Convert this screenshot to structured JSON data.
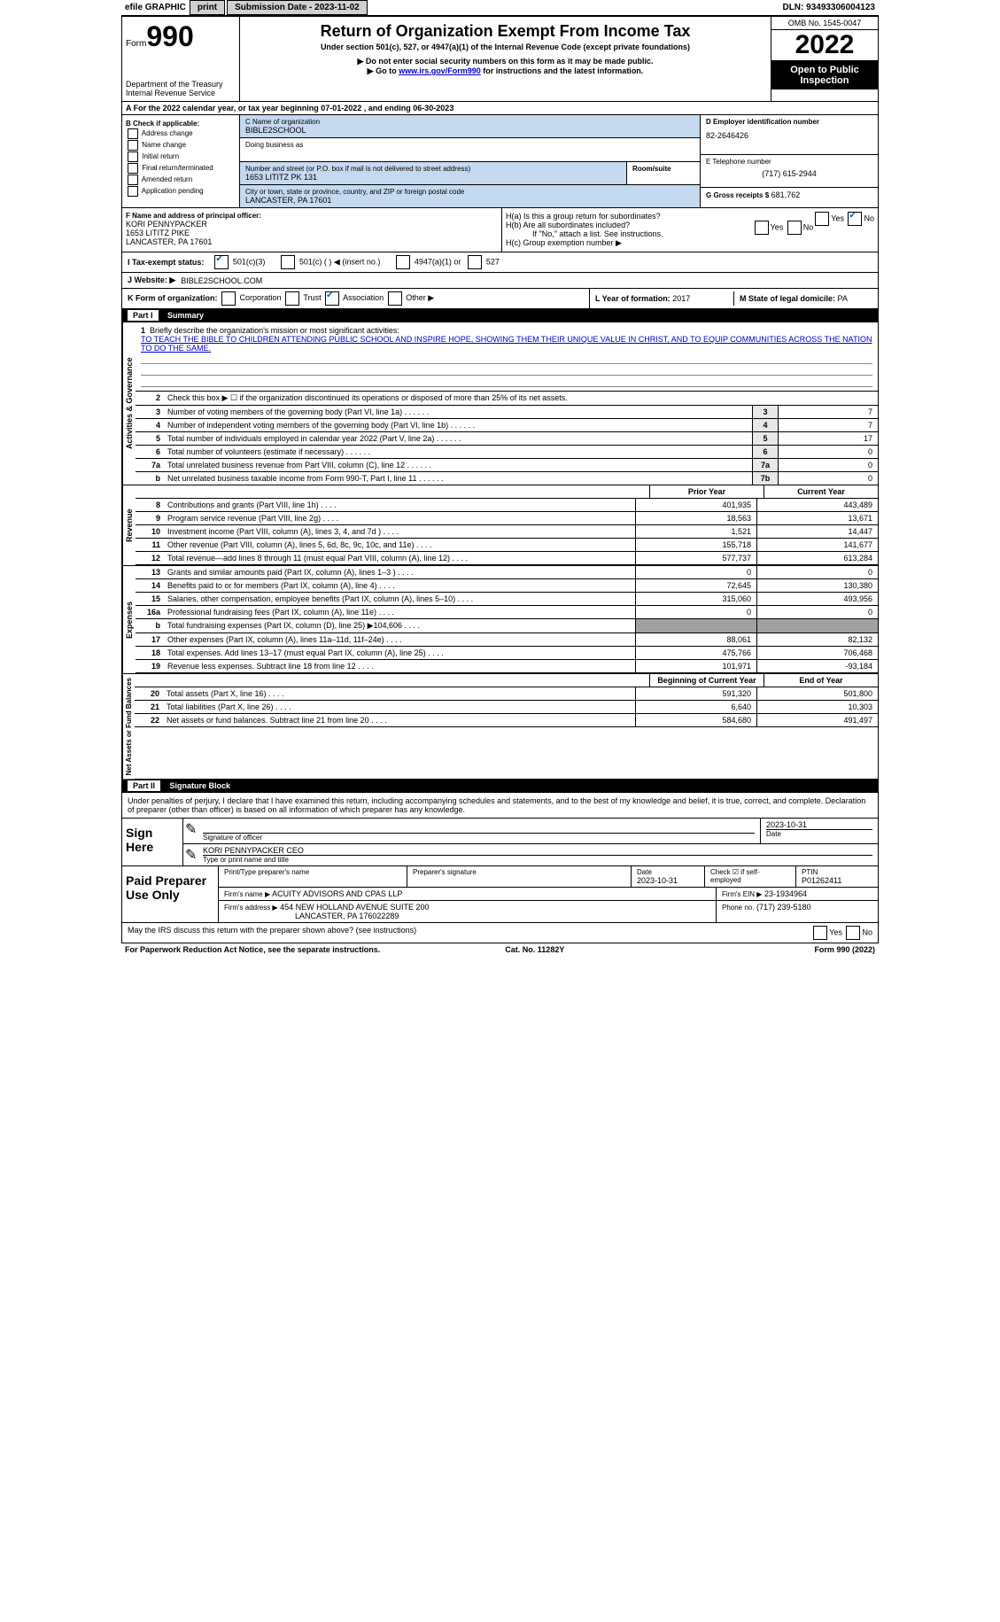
{
  "topbar": {
    "efile": "efile GRAPHIC",
    "print": "print",
    "submission": "Submission Date - 2023-11-02",
    "dln": "DLN: 93493306004123"
  },
  "header": {
    "form_word": "Form",
    "form_num": "990",
    "dept": "Department of the Treasury",
    "irs": "Internal Revenue Service",
    "title": "Return of Organization Exempt From Income Tax",
    "subtitle": "Under section 501(c), 527, or 4947(a)(1) of the Internal Revenue Code (except private foundations)",
    "note1": "▶ Do not enter social security numbers on this form as it may be made public.",
    "note2_pre": "▶ Go to ",
    "note2_link": "www.irs.gov/Form990",
    "note2_post": " for instructions and the latest information.",
    "omb": "OMB No. 1545-0047",
    "year": "2022",
    "open": "Open to Public Inspection"
  },
  "row_a": "A For the 2022 calendar year, or tax year beginning 07-01-2022    , and ending 06-30-2023",
  "col_b": {
    "header": "B Check if applicable:",
    "items": [
      "Address change",
      "Name change",
      "Initial return",
      "Final return/terminated",
      "Amended return",
      "Application pending"
    ]
  },
  "col_c": {
    "name_label": "C Name of organization",
    "name": "BIBLE2SCHOOL",
    "dba": "Doing business as",
    "street_label": "Number and street (or P.O. box if mail is not delivered to street address)",
    "street": "1653 LITITZ PK 131",
    "room": "Room/suite",
    "city_label": "City or town, state or province, country, and ZIP or foreign postal code",
    "city": "LANCASTER, PA  17601"
  },
  "col_d": {
    "ein_label": "D Employer identification number",
    "ein": "82-2646426",
    "phone_label": "E Telephone number",
    "phone": "(717) 615-2944",
    "gross_label": "G Gross receipts $",
    "gross": "681,762"
  },
  "officer": {
    "label": "F Name and address of principal officer:",
    "name": "KORI PENNYPACKER",
    "street": "1653 LITITZ PIKE",
    "city": "LANCASTER, PA  17601"
  },
  "h_section": {
    "ha": "H(a)  Is this a group return for subordinates?",
    "hb": "H(b)  Are all subordinates included?",
    "hb_note": "If \"No,\" attach a list. See instructions.",
    "hc": "H(c)  Group exemption number ▶",
    "yes": "Yes",
    "no": "No"
  },
  "tax_status": {
    "label": "I  Tax-exempt status:",
    "opt1": "501(c)(3)",
    "opt2": "501(c) (   ) ◀ (insert no.)",
    "opt3": "4947(a)(1) or",
    "opt4": "527"
  },
  "website": {
    "label": "J  Website: ▶",
    "value": "BIBLE2SCHOOL.COM"
  },
  "form_org": {
    "label": "K Form of organization:",
    "opts": [
      "Corporation",
      "Trust",
      "Association",
      "Other ▶"
    ],
    "checked": 2
  },
  "year_formed": {
    "label": "L Year of formation:",
    "value": "2017"
  },
  "domicile": {
    "label": "M State of legal domicile:",
    "value": "PA"
  },
  "part1": {
    "title": "Part I",
    "subtitle": "Summary",
    "vert1": "Activities & Governance",
    "vert2": "Revenue",
    "vert3": "Expenses",
    "vert4": "Net Assets or Fund Balances",
    "line1_label": "Briefly describe the organization's mission or most significant activities:",
    "mission": "TO TEACH THE BIBLE TO CHILDREN ATTENDING PUBLIC SCHOOL AND INSPIRE HOPE, SHOWING THEM THEIR UNIQUE VALUE IN CHRIST, AND TO EQUIP COMMUNITIES ACROSS THE NATION TO DO THE SAME.",
    "line2": "Check this box ▶ ☐ if the organization discontinued its operations or disposed of more than 25% of its net assets.",
    "lines_ag": [
      {
        "n": "3",
        "t": "Number of voting members of the governing body (Part VI, line 1a)",
        "k": "3",
        "v": "7"
      },
      {
        "n": "4",
        "t": "Number of independent voting members of the governing body (Part VI, line 1b)",
        "k": "4",
        "v": "7"
      },
      {
        "n": "5",
        "t": "Total number of individuals employed in calendar year 2022 (Part V, line 2a)",
        "k": "5",
        "v": "17"
      },
      {
        "n": "6",
        "t": "Total number of volunteers (estimate if necessary)",
        "k": "6",
        "v": "0"
      },
      {
        "n": "7a",
        "t": "Total unrelated business revenue from Part VIII, column (C), line 12",
        "k": "7a",
        "v": "0"
      },
      {
        "n": "b",
        "t": "Net unrelated business taxable income from Form 990-T, Part I, line 11",
        "k": "7b",
        "v": "0"
      }
    ],
    "col_prior": "Prior Year",
    "col_current": "Current Year",
    "rev": [
      {
        "n": "8",
        "t": "Contributions and grants (Part VIII, line 1h)",
        "p": "401,935",
        "c": "443,489"
      },
      {
        "n": "9",
        "t": "Program service revenue (Part VIII, line 2g)",
        "p": "18,563",
        "c": "13,671"
      },
      {
        "n": "10",
        "t": "Investment income (Part VIII, column (A), lines 3, 4, and 7d )",
        "p": "1,521",
        "c": "14,447"
      },
      {
        "n": "11",
        "t": "Other revenue (Part VIII, column (A), lines 5, 6d, 8c, 9c, 10c, and 11e)",
        "p": "155,718",
        "c": "141,677"
      },
      {
        "n": "12",
        "t": "Total revenue—add lines 8 through 11 (must equal Part VIII, column (A), line 12)",
        "p": "577,737",
        "c": "613,284"
      }
    ],
    "exp": [
      {
        "n": "13",
        "t": "Grants and similar amounts paid (Part IX, column (A), lines 1–3 )",
        "p": "0",
        "c": "0"
      },
      {
        "n": "14",
        "t": "Benefits paid to or for members (Part IX, column (A), line 4)",
        "p": "72,645",
        "c": "130,380"
      },
      {
        "n": "15",
        "t": "Salaries, other compensation, employee benefits (Part IX, column (A), lines 5–10)",
        "p": "315,060",
        "c": "493,956"
      },
      {
        "n": "16a",
        "t": "Professional fundraising fees (Part IX, column (A), line 11e)",
        "p": "0",
        "c": "0"
      },
      {
        "n": "b",
        "t": "Total fundraising expenses (Part IX, column (D), line 25) ▶104,606",
        "p": "grey",
        "c": "grey"
      },
      {
        "n": "17",
        "t": "Other expenses (Part IX, column (A), lines 11a–11d, 11f–24e)",
        "p": "88,061",
        "c": "82,132"
      },
      {
        "n": "18",
        "t": "Total expenses. Add lines 13–17 (must equal Part IX, column (A), line 25)",
        "p": "475,766",
        "c": "706,468"
      },
      {
        "n": "19",
        "t": "Revenue less expenses. Subtract line 18 from line 12",
        "p": "101,971",
        "c": "-93,184"
      }
    ],
    "col_begin": "Beginning of Current Year",
    "col_end": "End of Year",
    "net": [
      {
        "n": "20",
        "t": "Total assets (Part X, line 16)",
        "p": "591,320",
        "c": "501,800"
      },
      {
        "n": "21",
        "t": "Total liabilities (Part X, line 26)",
        "p": "6,640",
        "c": "10,303"
      },
      {
        "n": "22",
        "t": "Net assets or fund balances. Subtract line 21 from line 20",
        "p": "584,680",
        "c": "491,497"
      }
    ]
  },
  "part2": {
    "title": "Part II",
    "subtitle": "Signature Block",
    "declaration": "Under penalties of perjury, I declare that I have examined this return, including accompanying schedules and statements, and to the best of my knowledge and belief, it is true, correct, and complete. Declaration of preparer (other than officer) is based on all information of which preparer has any knowledge.",
    "sign_here": "Sign Here",
    "sig_officer": "Signature of officer",
    "sig_date": "2023-10-31",
    "sig_name": "KORI PENNYPACKER  CEO",
    "sig_name_label": "Type or print name and title",
    "paid": "Paid Preparer Use Only",
    "prep_name_label": "Print/Type preparer's name",
    "prep_sig_label": "Preparer's signature",
    "prep_date_label": "Date",
    "prep_date": "2023-10-31",
    "self_emp": "Check ☑ if self-employed",
    "ptin_label": "PTIN",
    "ptin": "P01262411",
    "firm_name_label": "Firm's name    ▶",
    "firm_name": "ACUITY ADVISORS AND CPAS LLP",
    "firm_ein_label": "Firm's EIN ▶",
    "firm_ein": "23-1934964",
    "firm_addr_label": "Firm's address ▶",
    "firm_addr1": "454 NEW HOLLAND AVENUE SUITE 200",
    "firm_addr2": "LANCASTER, PA  176022289",
    "firm_phone_label": "Phone no.",
    "firm_phone": "(717) 239-5180",
    "discuss": "May the IRS discuss this return with the preparer shown above? (see instructions)",
    "paperwork": "For Paperwork Reduction Act Notice, see the separate instructions.",
    "cat": "Cat. No. 11282Y",
    "form_footer": "Form 990 (2022)"
  }
}
